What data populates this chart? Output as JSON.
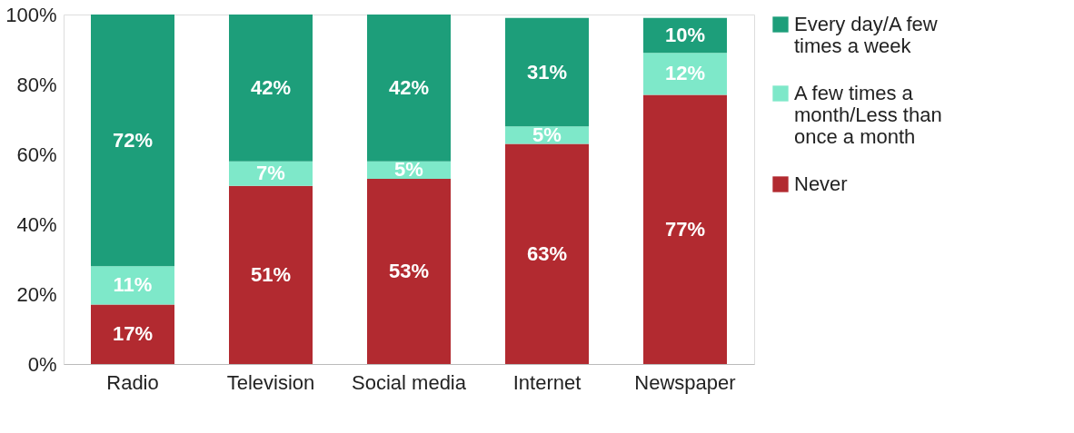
{
  "chart_data": {
    "type": "bar",
    "stacked": true,
    "categories": [
      "Radio",
      "Television",
      "Social media",
      "Internet",
      "Newspaper"
    ],
    "series": [
      {
        "name": "Never",
        "color": "#b22a30",
        "values": [
          17,
          51,
          53,
          63,
          77
        ],
        "value_labels": [
          "17%",
          "51%",
          "53%",
          "63%",
          "77%"
        ]
      },
      {
        "name": "A few times a month/Less than once a month",
        "color": "#7ee8c9",
        "values": [
          11,
          7,
          5,
          5,
          12
        ],
        "value_labels": [
          "11%",
          "7%",
          "5%",
          "5%",
          "12%"
        ]
      },
      {
        "name": "Every day/A few times a week",
        "color": "#1d9e7a",
        "values": [
          72,
          42,
          42,
          31,
          10
        ],
        "value_labels": [
          "72%",
          "42%",
          "42%",
          "31%",
          "10%"
        ]
      }
    ],
    "ylim": [
      0,
      100
    ],
    "yticks": [
      {
        "value": 0,
        "label": "0%"
      },
      {
        "value": 20,
        "label": "20%"
      },
      {
        "value": 40,
        "label": "40%"
      },
      {
        "value": 60,
        "label": "60%"
      },
      {
        "value": 80,
        "label": "80%"
      },
      {
        "value": 100,
        "label": "100%"
      }
    ],
    "legend": "right",
    "grid": false
  }
}
